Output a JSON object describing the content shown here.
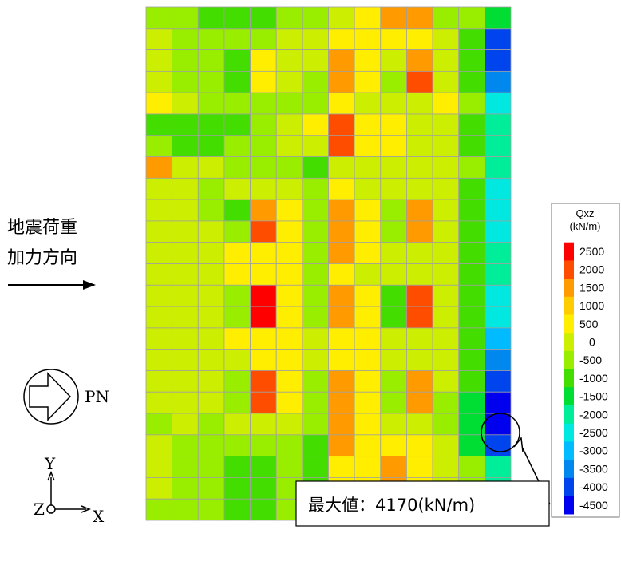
{
  "direction_label": {
    "line1": "地震荷重",
    "line2": "加力方向"
  },
  "compass": {
    "label": "PN"
  },
  "axes": {
    "y": "Y",
    "z": "Z",
    "x": "X"
  },
  "legend": {
    "title1": "Qxz",
    "title2": "(kN/m)",
    "levels": [
      "2500",
      "2000",
      "1500",
      "1000",
      "500",
      "0",
      "-500",
      "-1000",
      "-1500",
      "-2000",
      "-2500",
      "-3000",
      "-3500",
      "-4000",
      "-4500"
    ],
    "colors": [
      "#ff0000",
      "#ff4d00",
      "#ff9a00",
      "#ffcc00",
      "#ffee00",
      "#ccee00",
      "#99ee00",
      "#44dd00",
      "#00dd33",
      "#00ee99",
      "#00e8e0",
      "#00bbff",
      "#0088ee",
      "#0044ee",
      "#0000ee"
    ]
  },
  "callout": {
    "text": "最大値：4170(kN/m)"
  },
  "grid": {
    "cols": 14,
    "rows": 24,
    "cells": [
      [
        6,
        6,
        7,
        7,
        7,
        6,
        6,
        5,
        4,
        2,
        2,
        6,
        6,
        8
      ],
      [
        5,
        6,
        6,
        6,
        6,
        5,
        5,
        4,
        4,
        4,
        4,
        5,
        7,
        13
      ],
      [
        5,
        6,
        6,
        7,
        4,
        5,
        5,
        2,
        4,
        5,
        2,
        5,
        7,
        13
      ],
      [
        5,
        6,
        6,
        7,
        4,
        5,
        6,
        2,
        4,
        6,
        1,
        5,
        7,
        12
      ],
      [
        4,
        5,
        6,
        6,
        6,
        6,
        6,
        4,
        5,
        5,
        5,
        4,
        6,
        10
      ],
      [
        7,
        7,
        7,
        7,
        6,
        5,
        4,
        1,
        4,
        4,
        5,
        5,
        7,
        9
      ],
      [
        6,
        7,
        7,
        6,
        6,
        5,
        5,
        1,
        4,
        4,
        5,
        5,
        7,
        9
      ],
      [
        2,
        5,
        5,
        6,
        6,
        6,
        7,
        5,
        5,
        5,
        5,
        5,
        6,
        9
      ],
      [
        5,
        5,
        6,
        5,
        5,
        5,
        6,
        4,
        5,
        5,
        5,
        5,
        7,
        10
      ],
      [
        5,
        5,
        6,
        7,
        2,
        4,
        6,
        2,
        4,
        6,
        2,
        5,
        7,
        10
      ],
      [
        5,
        5,
        5,
        6,
        1,
        4,
        6,
        2,
        4,
        6,
        2,
        5,
        7,
        10
      ],
      [
        5,
        5,
        5,
        4,
        4,
        4,
        6,
        2,
        4,
        5,
        5,
        5,
        7,
        9
      ],
      [
        5,
        5,
        5,
        4,
        4,
        4,
        6,
        4,
        5,
        5,
        5,
        5,
        7,
        9
      ],
      [
        5,
        5,
        5,
        6,
        0,
        4,
        6,
        2,
        4,
        7,
        1,
        5,
        7,
        10
      ],
      [
        5,
        5,
        5,
        6,
        0,
        4,
        6,
        2,
        4,
        7,
        1,
        5,
        7,
        10
      ],
      [
        5,
        5,
        5,
        4,
        4,
        4,
        5,
        4,
        4,
        5,
        5,
        5,
        7,
        11
      ],
      [
        5,
        5,
        5,
        5,
        4,
        4,
        5,
        4,
        4,
        5,
        5,
        5,
        7,
        12
      ],
      [
        5,
        5,
        5,
        6,
        1,
        4,
        6,
        2,
        4,
        6,
        2,
        5,
        7,
        13
      ],
      [
        5,
        5,
        5,
        6,
        1,
        4,
        6,
        2,
        4,
        6,
        2,
        6,
        8,
        14
      ],
      [
        6,
        5,
        6,
        5,
        5,
        5,
        6,
        2,
        4,
        5,
        5,
        6,
        8,
        14
      ],
      [
        5,
        6,
        6,
        6,
        6,
        6,
        7,
        2,
        4,
        4,
        4,
        5,
        8,
        13
      ],
      [
        5,
        6,
        6,
        7,
        7,
        6,
        7,
        4,
        4,
        2,
        4,
        5,
        6,
        9
      ],
      [
        5,
        6,
        6,
        7,
        7,
        6,
        7,
        4,
        4,
        2,
        4,
        5,
        6,
        9
      ],
      [
        6,
        6,
        6,
        7,
        7,
        6,
        7,
        4,
        4,
        4,
        4,
        5,
        6,
        9
      ]
    ]
  }
}
